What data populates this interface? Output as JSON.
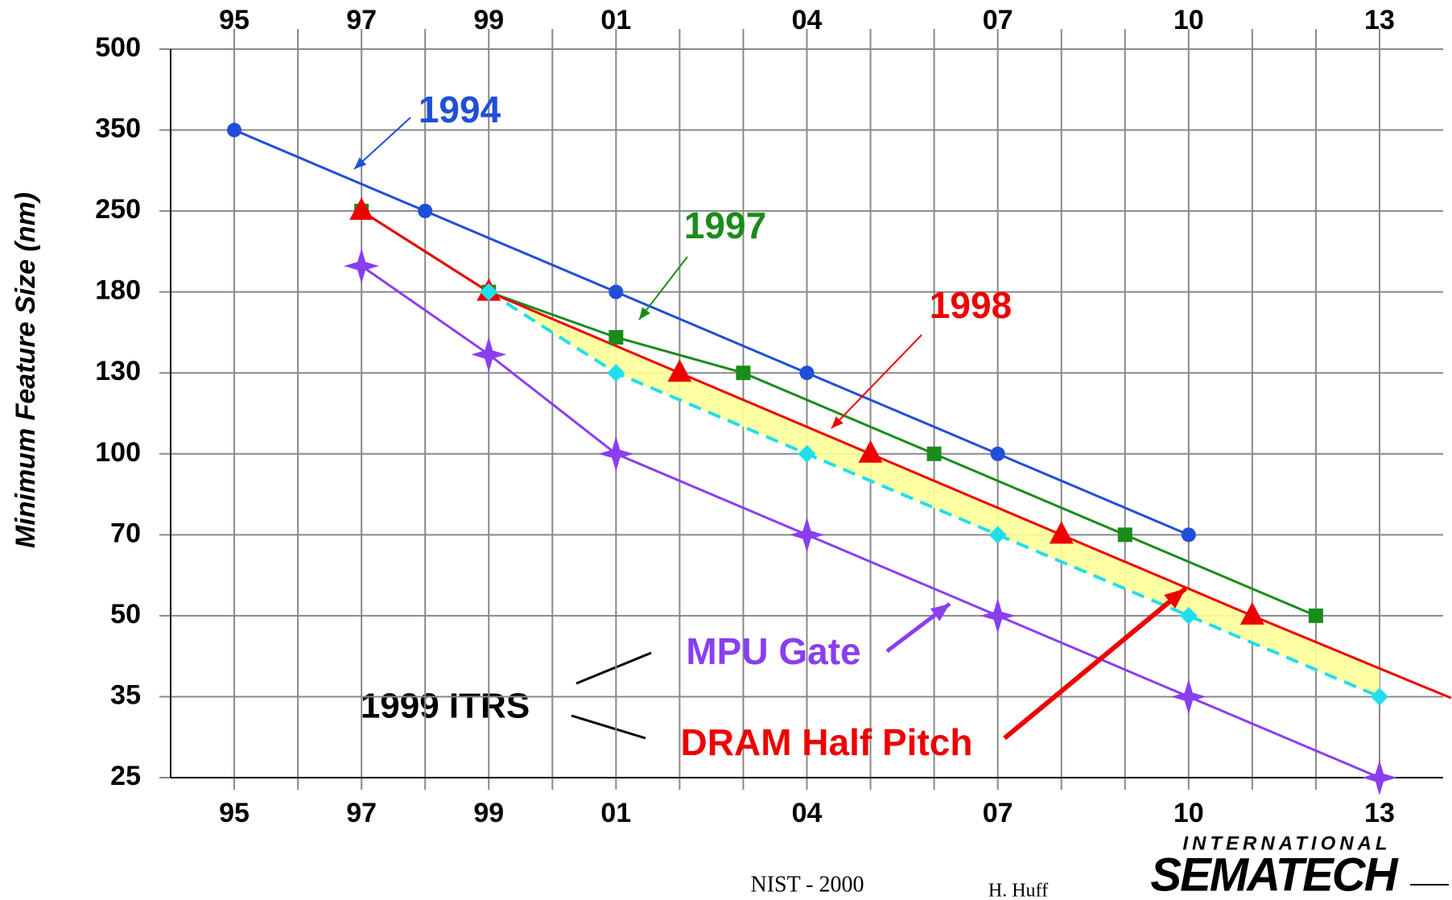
{
  "chart_data": {
    "type": "line",
    "y_label": "Minimum Feature Size (nm)",
    "yscale": "even-ticks",
    "xlim": [
      1994,
      2014
    ],
    "xticks": [
      {
        "value": 1995,
        "label": "95"
      },
      {
        "value": 1997,
        "label": "97"
      },
      {
        "value": 1999,
        "label": "99"
      },
      {
        "value": 2001,
        "label": "01"
      },
      {
        "value": 2004,
        "label": "04"
      },
      {
        "value": 2007,
        "label": "07"
      },
      {
        "value": 2010,
        "label": "10"
      },
      {
        "value": 2013,
        "label": "13"
      }
    ],
    "x_grid": [
      1995,
      1996,
      1997,
      1998,
      1999,
      2000,
      2001,
      2002,
      2003,
      2004,
      2005,
      2006,
      2007,
      2008,
      2009,
      2010,
      2011,
      2012,
      2013
    ],
    "ylim": [
      25,
      500
    ],
    "yticks": [
      25,
      35,
      50,
      70,
      100,
      130,
      180,
      250,
      350,
      500
    ],
    "grid": true,
    "series": [
      {
        "name": "1994",
        "color": "#1f4fd8",
        "marker": "circle",
        "x": [
          1995,
          1998,
          2001,
          2004,
          2007,
          2010
        ],
        "values": [
          350,
          250,
          180,
          130,
          100,
          70
        ]
      },
      {
        "name": "1997",
        "color": "#1a8c1a",
        "marker": "square",
        "x": [
          1997,
          1999,
          2001,
          2003,
          2006,
          2009,
          2012
        ],
        "values": [
          250,
          180,
          150,
          130,
          100,
          70,
          50
        ]
      },
      {
        "name": "1998",
        "color": "#ee0000",
        "marker": "triangle",
        "x": [
          1997,
          1999,
          2002,
          2005,
          2008,
          2011
        ],
        "values": [
          250,
          180,
          130,
          100,
          70,
          50
        ]
      },
      {
        "name": "DRAM Half Pitch",
        "color": "#22dded",
        "marker": "diamond",
        "dashed": true,
        "x": [
          1999,
          2001,
          2004,
          2007,
          2010,
          2013
        ],
        "values": [
          180,
          130,
          100,
          70,
          50,
          35
        ]
      },
      {
        "name": "MPU Gate",
        "color": "#8a3ef0",
        "marker": "star",
        "x": [
          1997,
          1999,
          2001,
          2004,
          2007,
          2010,
          2013
        ],
        "values": [
          200,
          140,
          100,
          70,
          50,
          35,
          25
        ]
      }
    ],
    "annotation": "1999 ITRS"
  },
  "footer": {
    "left": "NIST - 2000",
    "author": "H. Huff",
    "logo_top": "INTERNATIONAL",
    "logo": "SEMATECH"
  }
}
